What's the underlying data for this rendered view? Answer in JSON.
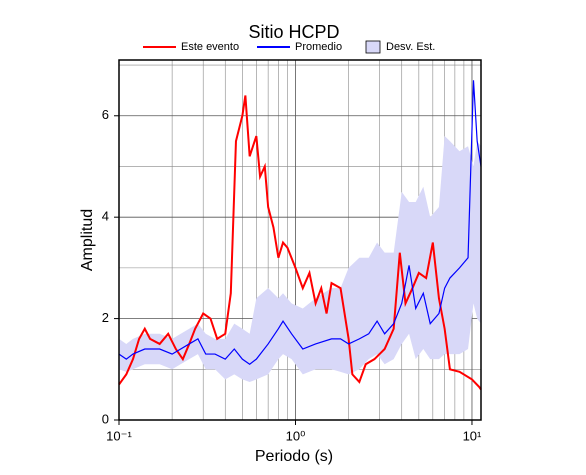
{
  "chart_data": {
    "type": "line",
    "title": "Sitio HCPD",
    "x_label": "Periodo (s)",
    "y_label": "Amplitud",
    "xscale": "log",
    "xlim": [
      0.1,
      11.25
    ],
    "ylim": [
      0,
      7.1
    ],
    "xticks": [
      {
        "value": 0.1,
        "label": "10⁻¹"
      },
      {
        "value": 1,
        "label": "10⁰"
      },
      {
        "value": 10,
        "label": "10¹"
      }
    ],
    "xminor": [
      0.2,
      0.3,
      0.4,
      0.5,
      0.6,
      0.7,
      0.8,
      0.9,
      2,
      3,
      4,
      5,
      6,
      7,
      8,
      9
    ],
    "yticks": [
      0,
      2,
      4,
      6
    ],
    "yminor": [
      1,
      3,
      5,
      7
    ],
    "grid": true,
    "legend": "top",
    "series": [
      {
        "name": "Este evento",
        "color": "#ff0000",
        "x": [
          0.1,
          0.11,
          0.12,
          0.13,
          0.14,
          0.15,
          0.17,
          0.19,
          0.21,
          0.23,
          0.25,
          0.27,
          0.3,
          0.33,
          0.36,
          0.4,
          0.43,
          0.46,
          0.5,
          0.52,
          0.55,
          0.6,
          0.63,
          0.67,
          0.7,
          0.75,
          0.8,
          0.85,
          0.9,
          1.0,
          1.1,
          1.2,
          1.3,
          1.4,
          1.5,
          1.6,
          1.8,
          2.0,
          2.1,
          2.3,
          2.5,
          2.8,
          3.2,
          3.6,
          3.9,
          4.2,
          4.6,
          5.0,
          5.5,
          6.0,
          6.5,
          7.0,
          7.5,
          8.5,
          10,
          11,
          11.25
        ],
        "values": [
          0.7,
          0.9,
          1.2,
          1.6,
          1.8,
          1.6,
          1.5,
          1.7,
          1.4,
          1.2,
          1.5,
          1.8,
          2.1,
          2.0,
          1.6,
          1.7,
          2.5,
          5.5,
          6.0,
          6.4,
          5.2,
          5.6,
          4.8,
          5.0,
          4.2,
          3.8,
          3.2,
          3.5,
          3.4,
          3.0,
          2.6,
          2.9,
          2.3,
          2.6,
          2.1,
          2.7,
          2.6,
          1.6,
          0.9,
          0.75,
          1.1,
          1.2,
          1.4,
          1.8,
          3.3,
          2.3,
          2.6,
          2.9,
          2.8,
          3.5,
          2.4,
          1.8,
          1.0,
          0.95,
          0.8,
          0.65,
          0.6
        ]
      },
      {
        "name": "Promedio",
        "color": "#0000ff",
        "x": [
          0.1,
          0.11,
          0.12,
          0.14,
          0.17,
          0.2,
          0.25,
          0.28,
          0.31,
          0.35,
          0.4,
          0.45,
          0.5,
          0.55,
          0.6,
          0.7,
          0.8,
          0.85,
          0.95,
          1.1,
          1.3,
          1.6,
          1.8,
          2.0,
          2.3,
          2.6,
          2.9,
          3.2,
          3.6,
          4.0,
          4.4,
          4.8,
          5.3,
          5.8,
          6.5,
          7.0,
          7.5,
          8.5,
          9.5,
          10.2,
          10.7,
          11.25
        ],
        "values": [
          1.3,
          1.2,
          1.3,
          1.4,
          1.4,
          1.3,
          1.5,
          1.6,
          1.3,
          1.3,
          1.2,
          1.4,
          1.2,
          1.1,
          1.2,
          1.5,
          1.8,
          1.95,
          1.7,
          1.4,
          1.5,
          1.6,
          1.6,
          1.5,
          1.6,
          1.7,
          1.95,
          1.7,
          1.9,
          2.3,
          3.05,
          2.2,
          2.5,
          1.9,
          2.1,
          2.6,
          2.8,
          3.0,
          3.2,
          6.7,
          5.5,
          5.0
        ]
      },
      {
        "name": "Desv. Est.",
        "color": "#d8d8f8",
        "upper": [
          1.6,
          1.5,
          1.6,
          1.7,
          1.7,
          1.6,
          1.8,
          1.9,
          1.7,
          1.6,
          1.6,
          1.9,
          1.8,
          1.7,
          2.4,
          2.6,
          2.4,
          2.5,
          2.3,
          2.2,
          2.4,
          2.6,
          2.6,
          3.0,
          3.2,
          3.2,
          3.5,
          3.3,
          3.3,
          4.5,
          4.3,
          4.3,
          4.6,
          4.0,
          4.2,
          5.6,
          5.5,
          5.3,
          5.4,
          5.0,
          5.5,
          5.4
        ],
        "lower": [
          1.0,
          0.95,
          1.0,
          1.1,
          1.1,
          1.0,
          1.2,
          1.3,
          1.0,
          1.0,
          0.8,
          0.9,
          0.8,
          0.75,
          0.8,
          0.9,
          1.2,
          1.3,
          1.2,
          0.9,
          1.0,
          1.0,
          0.95,
          0.9,
          1.0,
          1.2,
          1.3,
          1.1,
          1.2,
          1.5,
          1.7,
          1.2,
          1.4,
          1.2,
          1.2,
          1.3,
          1.3,
          1.3,
          1.4,
          2.3,
          2.0,
          1.9
        ]
      }
    ]
  }
}
